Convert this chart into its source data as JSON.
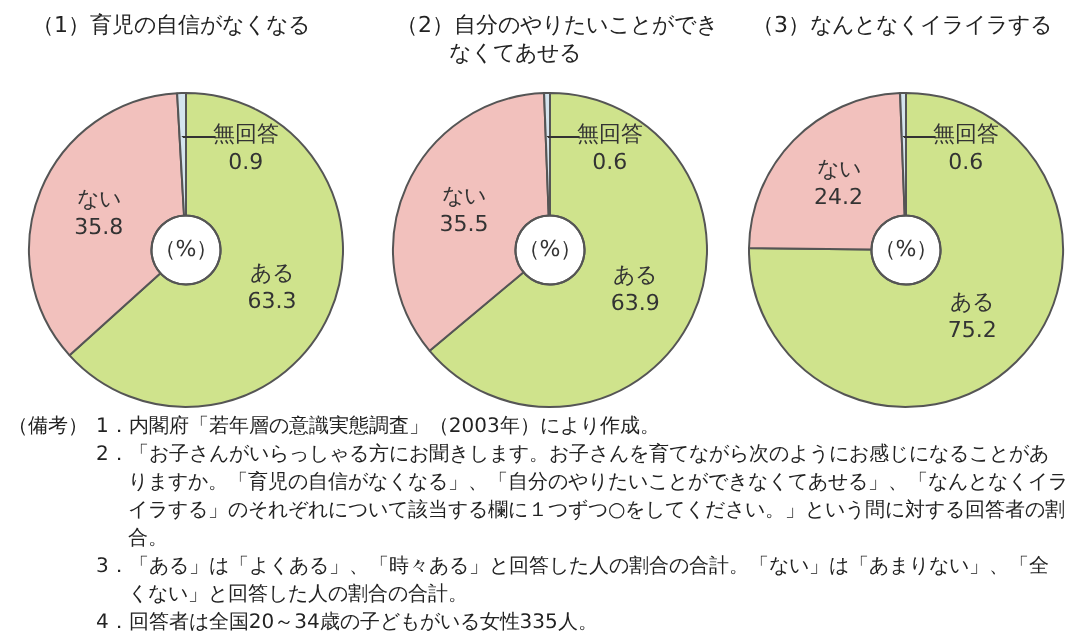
{
  "chart_data": [
    {
      "type": "donut",
      "title": "（1）育児の自信がなくなる",
      "categories": [
        "ある",
        "ない",
        "無回答"
      ],
      "values": [
        63.3,
        35.8,
        0.9
      ],
      "colors": [
        "#cfe38c",
        "#f2c1bd",
        "#d4e4ee"
      ],
      "data_labels": true,
      "annotations": [
        "（%）"
      ]
    },
    {
      "type": "donut",
      "title": "（2）自分のやりたいことができなくてあせる",
      "categories": [
        "ある",
        "ない",
        "無回答"
      ],
      "values": [
        63.9,
        35.5,
        0.6
      ],
      "colors": [
        "#cfe38c",
        "#f2c1bd",
        "#d4e4ee"
      ],
      "data_labels": true,
      "annotations": [
        "（%）"
      ]
    },
    {
      "type": "donut",
      "title": "（3）なんとなくイライラする",
      "categories": [
        "ある",
        "ない",
        "無回答"
      ],
      "values": [
        75.2,
        24.2,
        0.6
      ],
      "colors": [
        "#cfe38c",
        "#f2c1bd",
        "#d4e4ee"
      ],
      "data_labels": true,
      "annotations": [
        "（%）",
        "（備考）",
        "1．内閣府「若年層の意識実態調査」（2003年）により作成。",
        "2．「お子さんがいらっしゃる方にお聞きします。お子さんを育てながら次のようにお感じになることがありますか。「育児の自信がなくなる」、「自分のやりたいことができなくてあせる」、「なんとなくイライラする」のそれぞれについて該当する欄に１つずつ○をしてください。」という問に対する回答者の割合。",
        "3．「ある」は「よくある」、「時々ある」と回答した人の割合の合計。「ない」は「あまりない」、「全くない」と回答した人の割合の合計。",
        "4．回答者は全国20～34歳の子どもがいる女性335人。"
      ]
    }
  ]
}
